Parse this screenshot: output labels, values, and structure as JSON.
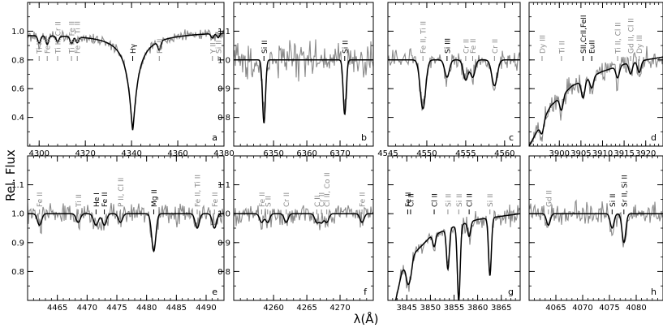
{
  "figure": {
    "ylabel": "Rel. Flux",
    "xlabel": "λ(Å)"
  },
  "colors": {
    "observed": "#8a8a8a",
    "model": "#000000",
    "label_gray": "#8a8a8a",
    "label_black": "#000000",
    "frame": "#000000"
  },
  "chart_data": [
    {
      "id": "a",
      "type": "line",
      "xlim": [
        4295,
        4380
      ],
      "ylim": [
        0.2,
        1.2
      ],
      "xticks": [
        4300,
        4320,
        4340,
        4360,
        4380
      ],
      "yticks": [
        0.4,
        0.6,
        0.8,
        1.0
      ],
      "ytick_labels": true,
      "noise": 0.018,
      "continuum": [
        [
          4295,
          0.98
        ],
        [
          4380,
          1.0
        ]
      ],
      "hydrogen": {
        "center": 4340.5,
        "depth": 0.68,
        "width": 2.2
      },
      "lines": [
        {
          "x": 4300,
          "label": "Ti II",
          "color": "gray",
          "depth": 0.05,
          "width": 0.6
        },
        {
          "x": 4303.5,
          "label": "Fe II",
          "color": "gray",
          "depth": 0.06,
          "width": 0.6
        },
        {
          "x": 4308,
          "label": "Ti II, Cr II",
          "color": "gray",
          "depth": 0.04,
          "width": 0.6
        },
        {
          "x": 4314,
          "label": "Ti II, Fe II",
          "color": "gray",
          "depth": 0.05,
          "width": 0.6
        },
        {
          "x": 4316.5,
          "label": "Fe II, Ti II",
          "color": "gray",
          "depth": 0.04,
          "width": 0.6
        },
        {
          "x": 4340.5,
          "label": "Hγ",
          "color": "black",
          "depth": 0,
          "width": 1
        },
        {
          "x": 4352,
          "label": "Fe II",
          "color": "gray",
          "depth": 0.06,
          "width": 0.6
        },
        {
          "x": 4375,
          "label": "Y II",
          "color": "gray",
          "depth": 0.03,
          "width": 0.6
        },
        {
          "x": 4377.5,
          "label": "Si II",
          "color": "gray",
          "depth": 0.03,
          "width": 0.6
        }
      ]
    },
    {
      "id": "b",
      "type": "line",
      "xlim": [
        6338,
        6380
      ],
      "ylim": [
        0.7,
        1.2
      ],
      "xticks": [
        6350,
        6360,
        6370
      ],
      "yticks": [
        0.8,
        0.9,
        1.0,
        1.1
      ],
      "ytick_labels": true,
      "noise": 0.03,
      "continuum": [
        [
          6338,
          1.0
        ],
        [
          6380,
          1.0
        ]
      ],
      "lines": [
        {
          "x": 6347.1,
          "label": "Si II",
          "color": "black",
          "depth": 0.22,
          "width": 0.45
        },
        {
          "x": 6371.4,
          "label": "Si II",
          "color": "black",
          "depth": 0.19,
          "width": 0.45
        }
      ]
    },
    {
      "id": "c",
      "type": "line",
      "xlim": [
        4545,
        4562
      ],
      "ylim": [
        0.7,
        1.2
      ],
      "xticks": [
        4545,
        4550,
        4555,
        4560
      ],
      "yticks": [
        0.8,
        0.9,
        1.0,
        1.1
      ],
      "ytick_labels": false,
      "noise": 0.015,
      "continuum": [
        [
          4545,
          1.0
        ],
        [
          4562,
          1.0
        ]
      ],
      "lines": [
        {
          "x": 4549.5,
          "label": "Fe II, Ti II",
          "color": "gray",
          "depth": 0.17,
          "width": 0.35
        },
        {
          "x": 4552.6,
          "label": "Si III",
          "color": "black",
          "depth": 0.06,
          "width": 0.3
        },
        {
          "x": 4555,
          "label": "Cr II",
          "color": "gray",
          "depth": 0.07,
          "width": 0.3
        },
        {
          "x": 4555.9,
          "label": "Fe II",
          "color": "gray",
          "depth": 0.06,
          "width": 0.3
        },
        {
          "x": 4558.7,
          "label": "Cr II",
          "color": "gray",
          "depth": 0.09,
          "width": 0.35
        }
      ]
    },
    {
      "id": "d",
      "type": "line",
      "xlim": [
        3893,
        3924
      ],
      "ylim": [
        0.7,
        1.2
      ],
      "xticks": [
        3900,
        3905,
        3910,
        3915,
        3920
      ],
      "yticks": [
        0.8,
        0.9,
        1.0,
        1.1
      ],
      "ytick_labels": false,
      "noise": 0.02,
      "continuum": [
        [
          3893,
          0.7
        ],
        [
          3898,
          0.84
        ],
        [
          3903,
          0.91
        ],
        [
          3910,
          0.96
        ],
        [
          3916,
          0.99
        ],
        [
          3924,
          1.01
        ]
      ],
      "lines": [
        {
          "x": 3896,
          "label": "Dy III",
          "color": "gray",
          "depth": 0.04,
          "width": 0.4
        },
        {
          "x": 3900.5,
          "label": "Ti II",
          "color": "gray",
          "depth": 0.05,
          "width": 0.4
        },
        {
          "x": 3905.5,
          "label": "SII,CrII,FeII",
          "color": "black",
          "depth": 0.06,
          "width": 0.4
        },
        {
          "x": 3907.5,
          "label": "EuII",
          "color": "black",
          "depth": 0.04,
          "width": 0.4
        },
        {
          "x": 3913.5,
          "label": "Ti II, Cl II",
          "color": "gray",
          "depth": 0.04,
          "width": 0.4
        },
        {
          "x": 3916.5,
          "label": "Gd II, Cl II",
          "color": "gray",
          "depth": 0.04,
          "width": 0.4
        },
        {
          "x": 3918.5,
          "label": "Dy III",
          "color": "gray",
          "depth": 0.04,
          "width": 0.4
        }
      ]
    },
    {
      "id": "e",
      "type": "line",
      "xlim": [
        4460,
        4493
      ],
      "ylim": [
        0.7,
        1.2
      ],
      "xticks": [
        4465,
        4470,
        4475,
        4480,
        4485,
        4490
      ],
      "yticks": [
        0.8,
        0.9,
        1.0,
        1.1
      ],
      "ytick_labels": true,
      "noise": 0.018,
      "continuum": [
        [
          4460,
          1.0
        ],
        [
          4493,
          1.0
        ]
      ],
      "lines": [
        {
          "x": 4462,
          "label": "Fe II",
          "color": "gray",
          "depth": 0.04,
          "width": 0.35
        },
        {
          "x": 4468.5,
          "label": "Ti II",
          "color": "gray",
          "depth": 0.03,
          "width": 0.35
        },
        {
          "x": 4471.5,
          "label": "He I",
          "color": "black",
          "depth": 0.04,
          "width": 0.4
        },
        {
          "x": 4472.9,
          "label": "Fe II",
          "color": "black",
          "depth": 0.04,
          "width": 0.35
        },
        {
          "x": 4475.6,
          "label": "P II, Cl II",
          "color": "gray",
          "depth": 0.03,
          "width": 0.35
        },
        {
          "x": 4481.2,
          "label": "Mg II",
          "color": "black",
          "depth": 0.13,
          "width": 0.35
        },
        {
          "x": 4488.5,
          "label": "Fe II, Ti II",
          "color": "gray",
          "depth": 0.05,
          "width": 0.35
        },
        {
          "x": 4491.4,
          "label": "Fe II",
          "color": "gray",
          "depth": 0.05,
          "width": 0.35
        }
      ]
    },
    {
      "id": "f",
      "type": "line",
      "xlim": [
        4254,
        4275
      ],
      "ylim": [
        0.7,
        1.2
      ],
      "xticks": [
        4260,
        4265,
        4270
      ],
      "yticks": [
        0.8,
        0.9,
        1.0,
        1.1
      ],
      "ytick_labels": true,
      "noise": 0.018,
      "continuum": [
        [
          4254,
          1.0
        ],
        [
          4275,
          1.0
        ]
      ],
      "lines": [
        {
          "x": 4258.2,
          "label": "Fe II",
          "color": "gray",
          "depth": 0.03,
          "width": 0.3
        },
        {
          "x": 4259.1,
          "label": "S II",
          "color": "gray",
          "depth": 0.03,
          "width": 0.3
        },
        {
          "x": 4261.9,
          "label": "Cr II",
          "color": "gray",
          "depth": 0.03,
          "width": 0.3
        },
        {
          "x": 4266.5,
          "label": "C II",
          "color": "gray",
          "depth": 0.03,
          "width": 0.3
        },
        {
          "x": 4267.2,
          "label": "Cr II",
          "color": "gray",
          "depth": 0.03,
          "width": 0.3
        },
        {
          "x": 4268,
          "label": "Cl II, Co II",
          "color": "gray",
          "depth": 0.03,
          "width": 0.3
        },
        {
          "x": 4273.3,
          "label": "Fe II",
          "color": "gray",
          "depth": 0.03,
          "width": 0.3
        }
      ]
    },
    {
      "id": "g",
      "type": "line",
      "xlim": [
        3841,
        3869
      ],
      "ylim": [
        0.7,
        1.2
      ],
      "xticks": [
        3845,
        3850,
        3855,
        3860,
        3865
      ],
      "yticks": [
        0.8,
        0.9,
        1.0,
        1.1
      ],
      "ytick_labels": false,
      "noise": 0.015,
      "continuum": [
        [
          3841,
          0.58
        ],
        [
          3844,
          0.8
        ],
        [
          3847,
          0.87
        ],
        [
          3850,
          0.92
        ],
        [
          3854,
          0.95
        ],
        [
          3860,
          0.98
        ],
        [
          3869,
          1.0
        ]
      ],
      "lines": [
        {
          "x": 3845.2,
          "label": "Fe II",
          "color": "black",
          "depth": 0.06,
          "width": 0.35
        },
        {
          "x": 3845.8,
          "label": "Cl II",
          "color": "black",
          "depth": 0.05,
          "width": 0.35
        },
        {
          "x": 3850.8,
          "label": "Cl II",
          "color": "black",
          "depth": 0.04,
          "width": 0.3
        },
        {
          "x": 3853.7,
          "label": "Si II",
          "color": "gray",
          "depth": 0.14,
          "width": 0.3
        },
        {
          "x": 3856,
          "label": "Si II",
          "color": "gray",
          "depth": 0.26,
          "width": 0.3
        },
        {
          "x": 3858.2,
          "label": "Cl II",
          "color": "black",
          "depth": 0.05,
          "width": 0.3
        },
        {
          "x": 3862.6,
          "label": "Si II",
          "color": "gray",
          "depth": 0.2,
          "width": 0.3
        }
      ]
    },
    {
      "id": "h",
      "type": "line",
      "xlim": [
        4060,
        4085
      ],
      "ylim": [
        0.7,
        1.2
      ],
      "xticks": [
        4065,
        4070,
        4075,
        4080
      ],
      "yticks": [
        0.8,
        0.9,
        1.0,
        1.1
      ],
      "ytick_labels": false,
      "noise": 0.018,
      "continuum": [
        [
          4060,
          1.0
        ],
        [
          4085,
          1.0
        ]
      ],
      "lines": [
        {
          "x": 4063.6,
          "label": "Gd II",
          "color": "gray",
          "depth": 0.04,
          "width": 0.35
        },
        {
          "x": 4075.5,
          "label": "Si II",
          "color": "black",
          "depth": 0.05,
          "width": 0.35
        },
        {
          "x": 4077.7,
          "label": "Sr II, Si II",
          "color": "black",
          "depth": 0.1,
          "width": 0.35
        }
      ]
    }
  ]
}
